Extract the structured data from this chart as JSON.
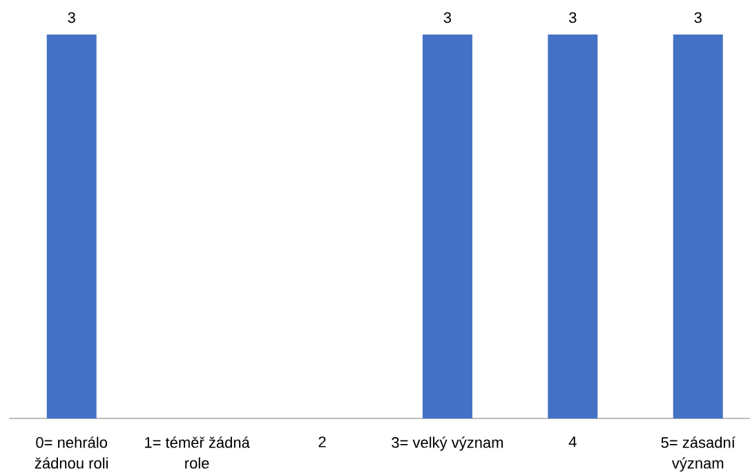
{
  "chart_data": {
    "type": "bar",
    "categories": [
      "0= nehrálo žádnou roli",
      "1= téměř žádná role",
      "2",
      "3= velký význam",
      "4",
      "5= zásadní význam"
    ],
    "values": [
      3,
      null,
      null,
      3,
      3,
      3
    ],
    "color": "#4472c4",
    "ylim": [
      0,
      3
    ],
    "tick_labels": "x",
    "data_labels": true
  }
}
